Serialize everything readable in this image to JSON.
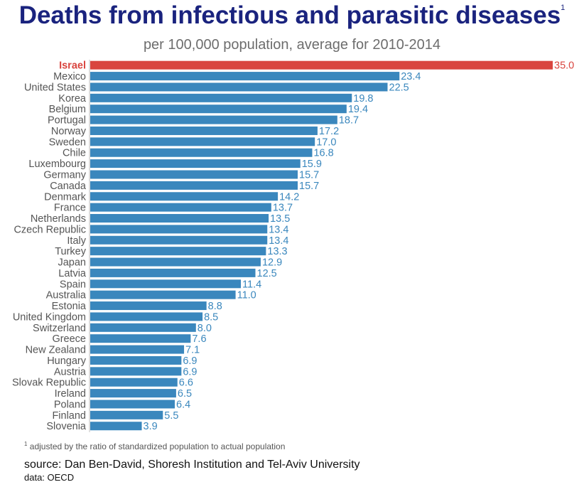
{
  "header": {
    "title": "Deaths from infectious and parasitic diseases",
    "title_note": "1",
    "subtitle": "per 100,000 population, average for 2010-2014"
  },
  "footer": {
    "footnote_mark": "1",
    "footnote": "adjusted by the ratio of standardized population to actual population",
    "source": "source: Dan Ben-David, Shoresh Institution and Tel-Aviv University",
    "data_source": "data: OECD"
  },
  "colors": {
    "bar": "#3a87bd",
    "highlight": "#d9453f",
    "label": "#555555",
    "value": "#3a87bd"
  },
  "chart_data": {
    "type": "bar",
    "orientation": "horizontal",
    "highlight": "Israel",
    "categories": [
      "Israel",
      "Mexico",
      "United States",
      "Korea",
      "Belgium",
      "Portugal",
      "Norway",
      "Sweden",
      "Chile",
      "Luxembourg",
      "Germany",
      "Canada",
      "Denmark",
      "France",
      "Netherlands",
      "Czech Republic",
      "Italy",
      "Turkey",
      "Japan",
      "Latvia",
      "Spain",
      "Australia",
      "Estonia",
      "United Kingdom",
      "Switzerland",
      "Greece",
      "New Zealand",
      "Hungary",
      "Austria",
      "Slovak Republic",
      "Ireland",
      "Poland",
      "Finland",
      "Slovenia"
    ],
    "values": [
      35.0,
      23.4,
      22.5,
      19.8,
      19.4,
      18.7,
      17.2,
      17.0,
      16.8,
      15.9,
      15.7,
      15.7,
      14.2,
      13.7,
      13.5,
      13.4,
      13.4,
      13.3,
      12.9,
      12.5,
      11.4,
      11.0,
      8.8,
      8.5,
      8.0,
      7.6,
      7.1,
      6.9,
      6.9,
      6.6,
      6.5,
      6.4,
      5.5,
      3.9
    ],
    "value_labels": [
      "35.0",
      "23.4",
      "22.5",
      "19.8",
      "19.4",
      "18.7",
      "17.2",
      "17.0",
      "16.8",
      "15.9",
      "15.7",
      "15.7",
      "14.2",
      "13.7",
      "13.5",
      "13.4",
      "13.4",
      "13.3",
      "12.9",
      "12.5",
      "11.4",
      "11.0",
      "8.8",
      "8.5",
      "8.0",
      "7.6",
      "7.1",
      "6.9",
      "6.9",
      "6.6",
      "6.5",
      "6.4",
      "5.5",
      "3.9"
    ],
    "xlim": [
      0,
      35
    ],
    "grid": false
  }
}
